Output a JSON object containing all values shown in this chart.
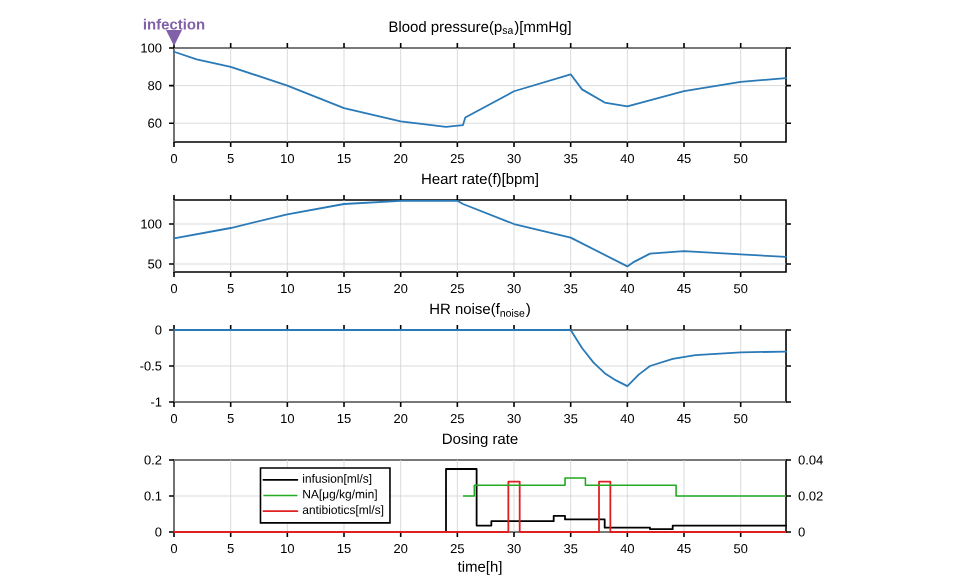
{
  "chart_data": [
    {
      "type": "line",
      "title": "Blood pressure(p$_{sa}$)[mmHg]",
      "xlim": [
        0,
        54
      ],
      "xticks": [
        0,
        5,
        10,
        15,
        20,
        25,
        30,
        35,
        40,
        45,
        50
      ],
      "ylim": [
        50,
        100
      ],
      "yticks": [
        60,
        80,
        100
      ],
      "grid": true,
      "annotations": [
        {
          "text": "infection",
          "x": 0,
          "y": 100
        }
      ],
      "series": [
        {
          "color": "#2a7ab8",
          "x": [
            0,
            2,
            5,
            10,
            15,
            20,
            24,
            25.5,
            25.7,
            30,
            35,
            36,
            38,
            40,
            45,
            50,
            54
          ],
          "values": [
            98,
            94,
            90,
            80,
            68,
            61,
            58,
            59,
            63,
            77,
            86,
            78,
            71,
            69,
            77,
            82,
            84
          ]
        }
      ]
    },
    {
      "type": "line",
      "title": "Heart rate(f)[bpm]",
      "xlim": [
        0,
        54
      ],
      "xticks": [
        0,
        5,
        10,
        15,
        20,
        25,
        30,
        35,
        40,
        45,
        50
      ],
      "ylim": [
        40,
        130
      ],
      "yticks": [
        50,
        100
      ],
      "grid": true,
      "series": [
        {
          "color": "#2a7ab8",
          "x": [
            0,
            5,
            10,
            15,
            20,
            25,
            25.5,
            30,
            35,
            40,
            40.5,
            42,
            45,
            50,
            54
          ],
          "values": [
            82,
            95,
            112,
            125,
            129,
            129,
            125,
            100,
            83,
            47,
            52,
            63,
            66,
            62,
            59
          ]
        }
      ]
    },
    {
      "type": "line",
      "title": "HR noise(f$_{noise}$)",
      "xlim": [
        0,
        54
      ],
      "xticks": [
        0,
        5,
        10,
        15,
        20,
        25,
        30,
        35,
        40,
        45,
        50
      ],
      "ylim": [
        -1,
        0
      ],
      "yticks": [
        -1,
        -0.5,
        0
      ],
      "grid": true,
      "series": [
        {
          "color": "#2a7ab8",
          "x": [
            0,
            35,
            36,
            37,
            38,
            39,
            40,
            41,
            42,
            44,
            46,
            50,
            54
          ],
          "values": [
            0,
            0,
            -0.25,
            -0.45,
            -0.6,
            -0.7,
            -0.78,
            -0.62,
            -0.5,
            -0.4,
            -0.35,
            -0.31,
            -0.3
          ]
        }
      ]
    },
    {
      "type": "step",
      "title": "Dosing rate",
      "xlabel": "time[h]",
      "xlim": [
        0,
        54
      ],
      "xticks": [
        0,
        5,
        10,
        15,
        20,
        25,
        30,
        35,
        40,
        45,
        50
      ],
      "ylim": [
        0,
        0.2
      ],
      "yticks": [
        0,
        0.1,
        0.2
      ],
      "y2lim": [
        0,
        0.04
      ],
      "y2ticks": [
        0,
        0.02,
        0.04
      ],
      "grid": true,
      "legend": "top left",
      "series": [
        {
          "name": "infusion[ml/s]",
          "color": "#000000",
          "x": [
            0,
            24,
            26.7,
            28,
            33.5,
            34.5,
            38,
            42,
            44,
            54
          ],
          "values": [
            0,
            0.175,
            0.018,
            0.03,
            0.045,
            0.035,
            0.012,
            0.008,
            0.018,
            0.018
          ]
        },
        {
          "name": "NA[μg/kg/min]",
          "color": "#22aa22",
          "axis": "y2",
          "x": [
            25.5,
            26.5,
            34.5,
            36.3,
            44.3,
            54
          ],
          "values": [
            0.02,
            0.026,
            0.03,
            0.026,
            0.02,
            0.02
          ]
        },
        {
          "name": "antibiotics[ml/s]",
          "color": "#e02020",
          "x": [
            0,
            29.5,
            30.5,
            37.5,
            38.5,
            54
          ],
          "values": [
            0,
            0.14,
            0,
            0.14,
            0,
            0
          ]
        }
      ]
    }
  ]
}
